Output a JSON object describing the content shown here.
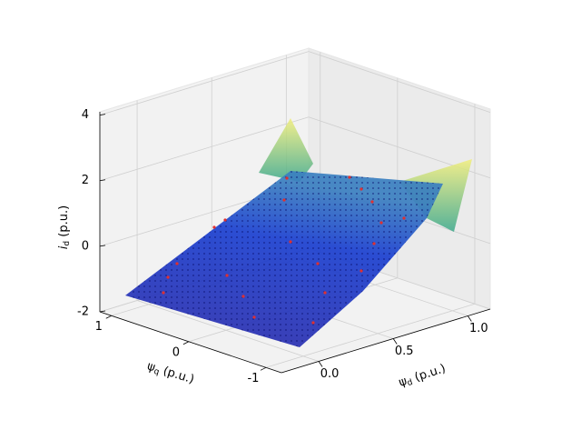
{
  "chart_data": {
    "type": "surface3d",
    "xlabel": {
      "symbol": "ψ",
      "subscript": "d",
      "unit": "(p.u.)"
    },
    "ylabel": {
      "symbol": "ψ",
      "subscript": "q",
      "unit": "(p.u.)"
    },
    "zlabel": {
      "symbol": "i",
      "subscript": "d",
      "unit": "(p.u.)"
    },
    "xlim": [
      -0.25,
      1.15
    ],
    "xticks": [
      {
        "value": 0,
        "label": "0.0"
      },
      0.5,
      {
        "value": 1,
        "label": "1.0"
      }
    ],
    "ylim": [
      -1.2,
      1.15
    ],
    "yticks": [
      -1,
      0,
      1
    ],
    "zlim": [
      -2,
      4.1
    ],
    "zticks": [
      -2,
      0,
      2,
      4
    ],
    "grid": true
  }
}
